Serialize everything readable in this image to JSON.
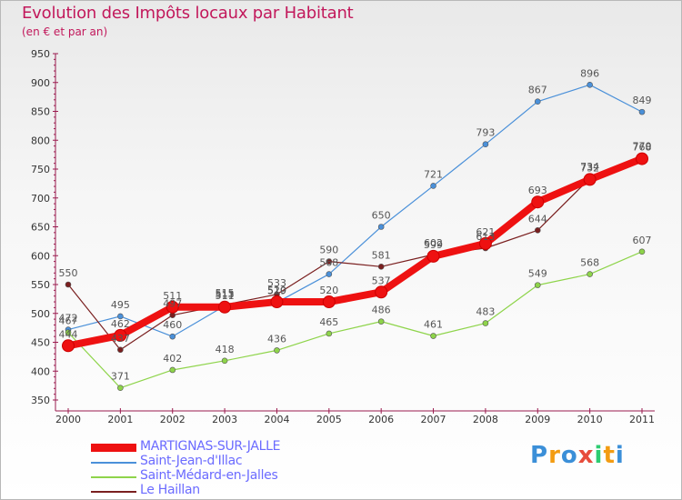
{
  "header": {
    "title": "Evolution des Impôts locaux par Habitant",
    "subtitle": "(en € et par an)"
  },
  "logo": {
    "letters": [
      "P",
      "r",
      "o",
      "x",
      "i",
      "t",
      "i"
    ],
    "colors": [
      "#3b8fd8",
      "#f39c12",
      "#3b8fd8",
      "#e74c3c",
      "#2ecc71",
      "#f39c12",
      "#3b8fd8"
    ]
  },
  "chart_data": {
    "type": "line",
    "title": "Evolution des Impôts locaux par Habitant",
    "subtitle": "(en € et par an)",
    "xlabel": "",
    "ylabel": "",
    "categories": [
      "2000",
      "2001",
      "2002",
      "2003",
      "2004",
      "2005",
      "2006",
      "2007",
      "2008",
      "2009",
      "2010",
      "2011"
    ],
    "ylim": [
      350,
      950
    ],
    "yticks": [
      350,
      400,
      450,
      500,
      550,
      600,
      650,
      700,
      750,
      800,
      850,
      900,
      950
    ],
    "grid": false,
    "legend_position": "bottom-left",
    "series": [
      {
        "name": "MARTIGNAS-SUR-JALLE",
        "color": "#ee1111",
        "thick": true,
        "values": [
          444,
          462,
          511,
          511,
          520,
          520,
          537,
          599,
          621,
          693,
          732,
          768
        ]
      },
      {
        "name": "Saint-Jean-d'Illac",
        "color": "#4a90d9",
        "thick": false,
        "values": [
          472,
          495,
          460,
          513,
          519,
          568,
          650,
          721,
          793,
          867,
          896,
          849
        ]
      },
      {
        "name": "Saint-Médard-en-Jalles",
        "color": "#8ed44a",
        "thick": false,
        "values": [
          467,
          371,
          402,
          418,
          436,
          465,
          486,
          461,
          483,
          549,
          568,
          607
        ]
      },
      {
        "name": "Le Haillan",
        "color": "#7a1f1f",
        "thick": false,
        "values": [
          550,
          437,
          497,
          515,
          533,
          590,
          581,
          602,
          613,
          644,
          734,
          770
        ]
      }
    ]
  }
}
